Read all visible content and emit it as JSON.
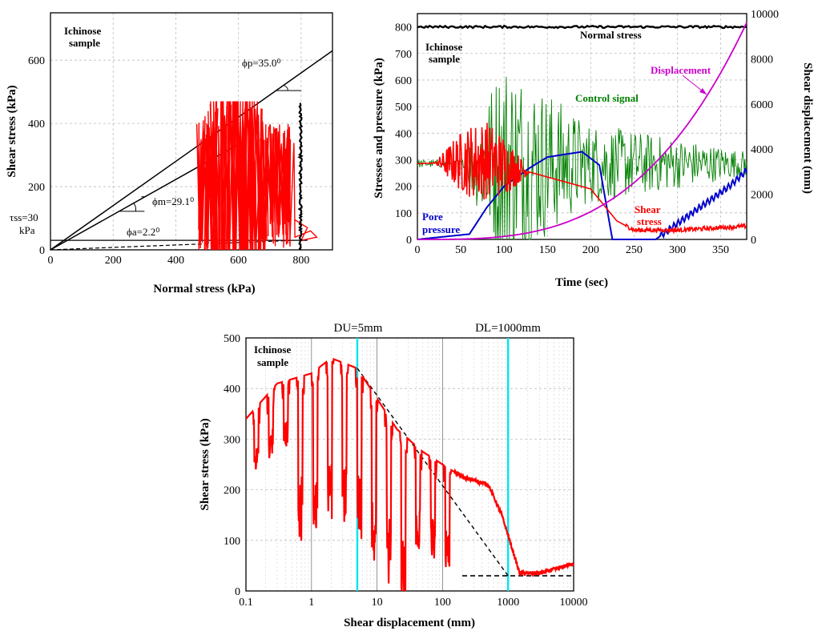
{
  "chart_data": [
    {
      "id": "stress-path",
      "type": "line",
      "xlabel": "Normal stress (kPa)",
      "ylabel": "Shear stress (kPa)",
      "xlim": [
        0,
        900
      ],
      "ylim": [
        0,
        750
      ],
      "xticks": [
        "0",
        "200",
        "400",
        "600",
        "800"
      ],
      "yticks": [
        "0",
        "200",
        "400",
        "600"
      ],
      "grid": true,
      "sample_label": [
        "Ichinose",
        "sample"
      ],
      "annotations": {
        "phi_p": "ϕp=35.0⁰",
        "phi_m": "ϕm=29.1⁰",
        "phi_a": "ϕa=2.2⁰",
        "tau_ss": "τss=30",
        "tau_ss_unit": "kPa"
      },
      "lines": {
        "phi_p_envelope": [
          [
            0,
            0
          ],
          [
            900,
            630
          ]
        ],
        "phi_m_envelope": [
          [
            0,
            0
          ],
          [
            600,
            334
          ]
        ],
        "tau_ss_level": [
          [
            0,
            30
          ],
          [
            820,
            30
          ]
        ],
        "phi_a_line": [
          [
            0,
            0
          ],
          [
            780,
            30
          ]
        ]
      },
      "series": [
        {
          "color": "#ff0000",
          "description_points": [
            [
              470,
              200
            ],
            [
              820,
              200
            ]
          ]
        },
        {
          "color": "#000000",
          "description_points": [
            [
              800,
              0
            ],
            [
              800,
              470
            ]
          ]
        }
      ]
    },
    {
      "id": "time-history",
      "type": "line",
      "xlabel": "Time (sec)",
      "ylabel": "Stresses and pressure (kPa)",
      "y2label": "Shear displacement (mm)",
      "xlim": [
        0,
        380
      ],
      "ylim": [
        0,
        850
      ],
      "y2lim": [
        0,
        10000
      ],
      "xticks": [
        "0",
        "50",
        "100",
        "150",
        "200",
        "250",
        "300",
        "350"
      ],
      "yticks": [
        "0",
        "100",
        "200",
        "300",
        "400",
        "500",
        "600",
        "700",
        "800"
      ],
      "y2ticks": [
        "0",
        "2000",
        "4000",
        "6000",
        "8000",
        "10000"
      ],
      "grid": true,
      "sample_label": [
        "Ichinose",
        "sample"
      ],
      "labels": {
        "normal": "Normal stress",
        "displacement": "Displacement",
        "control": "Control signal",
        "pore": [
          "Pore",
          "pressure"
        ],
        "shear": [
          "Shear",
          "stress"
        ]
      },
      "series": [
        {
          "name": "Normal stress",
          "color": "#000000",
          "x": [
            0,
            380
          ],
          "y": [
            800,
            800
          ]
        },
        {
          "name": "Control signal",
          "color": "#008000",
          "x": [
            60,
            100,
            150,
            200,
            250,
            300,
            380
          ],
          "y": [
            280,
            500,
            300,
            280,
            280,
            280,
            280
          ]
        },
        {
          "name": "Pore pressure",
          "color": "#0000cc",
          "x": [
            0,
            60,
            80,
            100,
            130,
            150,
            170,
            190,
            210,
            225,
            250,
            275,
            300,
            330,
            360,
            380
          ],
          "y": [
            0,
            20,
            120,
            200,
            270,
            310,
            320,
            330,
            280,
            0,
            0,
            0,
            60,
            130,
            200,
            260
          ]
        },
        {
          "name": "Shear stress",
          "color": "#ff0000",
          "x": [
            0,
            40,
            80,
            100,
            150,
            200,
            230,
            250,
            300,
            380
          ],
          "y": [
            285,
            290,
            300,
            280,
            235,
            190,
            70,
            35,
            35,
            50
          ]
        },
        {
          "name": "Displacement",
          "color": "#cc00cc",
          "axis": "y2",
          "x": [
            0,
            100,
            150,
            200,
            250,
            300,
            350,
            380
          ],
          "y": [
            0,
            20,
            150,
            500,
            1400,
            3200,
            6400,
            9600
          ]
        }
      ]
    },
    {
      "id": "displacement-log",
      "type": "line",
      "xscale": "log",
      "xlabel": "Shear displacement (mm)",
      "ylabel": "Shear stress (kPa)",
      "xlim": [
        0.1,
        10000
      ],
      "ylim": [
        0,
        500
      ],
      "xticks": [
        "0.1",
        "1",
        "10",
        "100",
        "1000",
        "10000"
      ],
      "yticks": [
        "0",
        "100",
        "200",
        "300",
        "400",
        "500"
      ],
      "grid": true,
      "sample_label": [
        "Ichinose",
        "sample"
      ],
      "labels": {
        "du": "DU=5mm",
        "dl": "DL=1000mm"
      },
      "vlines": [
        5,
        1000
      ],
      "dashed": {
        "decline": [
          [
            5,
            440
          ],
          [
            1000,
            30
          ]
        ],
        "residual": [
          [
            200,
            30
          ],
          [
            10000,
            30
          ]
        ]
      },
      "series": [
        {
          "name": "Shear stress",
          "color": "#ff0000",
          "x": [
            0.1,
            0.3,
            1,
            2,
            5,
            10,
            20,
            50,
            100,
            200,
            500,
            800,
            1000,
            1500,
            3000,
            6000,
            10000
          ],
          "y": [
            340,
            410,
            430,
            460,
            440,
            380,
            320,
            275,
            250,
            225,
            210,
            150,
            110,
            35,
            35,
            45,
            55
          ]
        }
      ]
    }
  ]
}
